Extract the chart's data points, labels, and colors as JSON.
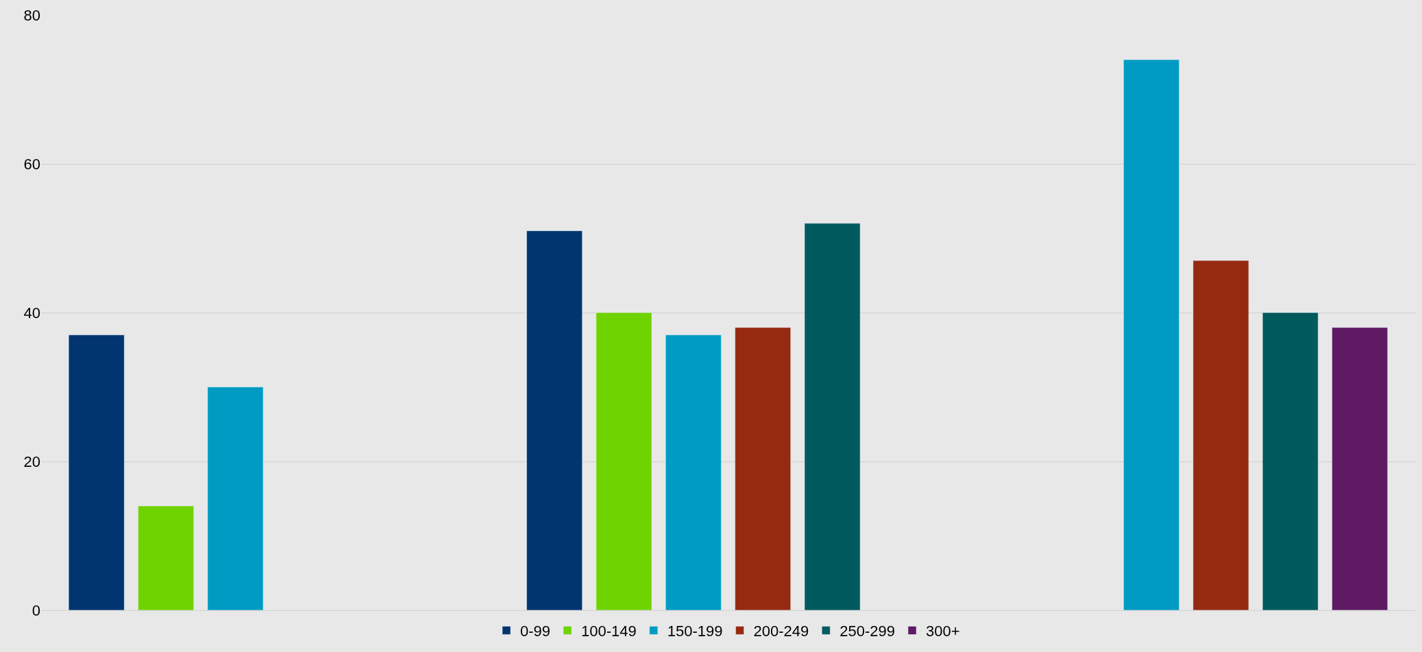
{
  "chart_data": {
    "type": "bar",
    "categories": [
      null,
      null,
      null
    ],
    "series": [
      {
        "name": "0-99",
        "color": "#00356f",
        "values": [
          37,
          51,
          null
        ]
      },
      {
        "name": "100-149",
        "color": "#6fd300",
        "values": [
          14,
          40,
          null
        ]
      },
      {
        "name": "150-199",
        "color": "#009bc2",
        "values": [
          30,
          37,
          74
        ]
      },
      {
        "name": "200-249",
        "color": "#962a10",
        "values": [
          null,
          38,
          47
        ]
      },
      {
        "name": "250-299",
        "color": "#005a5e",
        "values": [
          null,
          52,
          40
        ]
      },
      {
        "name": "300+",
        "color": "#5e1a63",
        "values": [
          null,
          null,
          38
        ]
      }
    ],
    "ylim": [
      0,
      80
    ],
    "yticks": [
      0,
      20,
      40,
      60,
      80
    ],
    "grid": "y",
    "legend": "bottom",
    "tick_labels": "y"
  }
}
